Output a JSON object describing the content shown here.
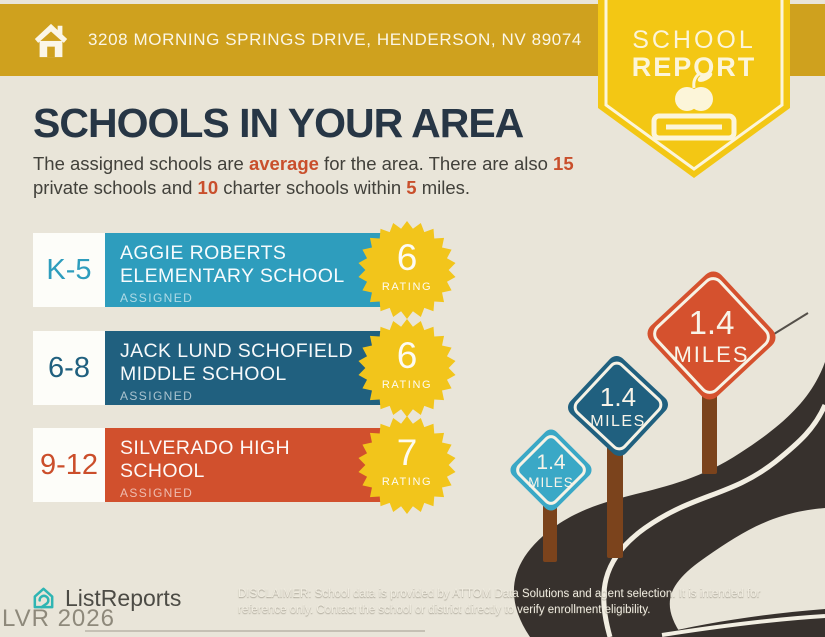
{
  "header": {
    "address": "3208 MORNING SPRINGS DRIVE, HENDERSON, NV 89074",
    "badge": {
      "line1": "SCHOOL",
      "line2": "REPORT"
    }
  },
  "intro": {
    "title": "SCHOOLS IN YOUR AREA",
    "segments": [
      {
        "text": "The assigned schools are "
      },
      {
        "text": "average",
        "highlight": true
      },
      {
        "text": " for the area. There are also "
      },
      {
        "text": "15",
        "highlight": true
      },
      {
        "text": "private schools and "
      },
      {
        "text": "10",
        "highlight": true
      },
      {
        "text": " charter schools within "
      },
      {
        "text": "5",
        "highlight": true
      },
      {
        "text": " miles."
      }
    ]
  },
  "schools": [
    {
      "grades": "K-5",
      "name_line1": "AGGIE ROBERTS",
      "name_line2": "ELEMENTARY SCHOOL",
      "status": "ASSIGNED",
      "rating": "6",
      "rating_label": "RATING",
      "color": "#2E9DBD"
    },
    {
      "grades": "6-8",
      "name_line1": "JACK LUND SCHOFIELD",
      "name_line2": "MIDDLE SCHOOL",
      "status": "ASSIGNED",
      "rating": "6",
      "rating_label": "RATING",
      "color": "#20607F"
    },
    {
      "grades": "9-12",
      "name_line1": "SILVERADO HIGH",
      "name_line2": "SCHOOL",
      "status": "ASSIGNED",
      "rating": "7",
      "rating_label": "RATING",
      "color": "#D1502D"
    }
  ],
  "signs": [
    {
      "value": "1.4",
      "unit": "MILES",
      "color": "#3AA8C6"
    },
    {
      "value": "1.4",
      "unit": "MILES",
      "color": "#20607F"
    },
    {
      "value": "1.4",
      "unit": "MILES",
      "color": "#D5512E"
    }
  ],
  "footer": {
    "brand": "ListReports",
    "watermark": "LVR 2026",
    "disclaimer": "DISCLAIMER: School data is provided by ATTOM Data Solutions and agent selection. It is intended for reference only. Contact the school or district directly to verify enrollment eligibility."
  },
  "colors": {
    "background": "#E9E5D9",
    "header_gold": "#CFA11E",
    "badge_yellow": "#F3C714",
    "starburst_yellow": "#F2C51B",
    "title_navy": "#273645",
    "accent_red": "#C94F2C",
    "row_teal": "#2E9DBD",
    "row_blue": "#20607F",
    "row_red": "#D1502D",
    "road": "#37312D",
    "road_line": "#F2EEE2",
    "post_brown": "#7B431C",
    "logo_teal": "#2FB5B3"
  }
}
